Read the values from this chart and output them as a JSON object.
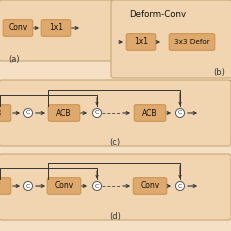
{
  "bg_color": "#f5dfc5",
  "box_color": "#dfa96e",
  "box_edge_color": "#c8904a",
  "panel_bg": "#f0d5b0",
  "panel_edge": "#c8a878",
  "arr_color": "#333333",
  "title_a": "(a)",
  "title_b": "(b)",
  "title_c": "(c)",
  "title_d": "(d)",
  "deform_label": "Deform-Conv",
  "figsize": [
    2.31,
    2.31
  ],
  "dpi": 100
}
